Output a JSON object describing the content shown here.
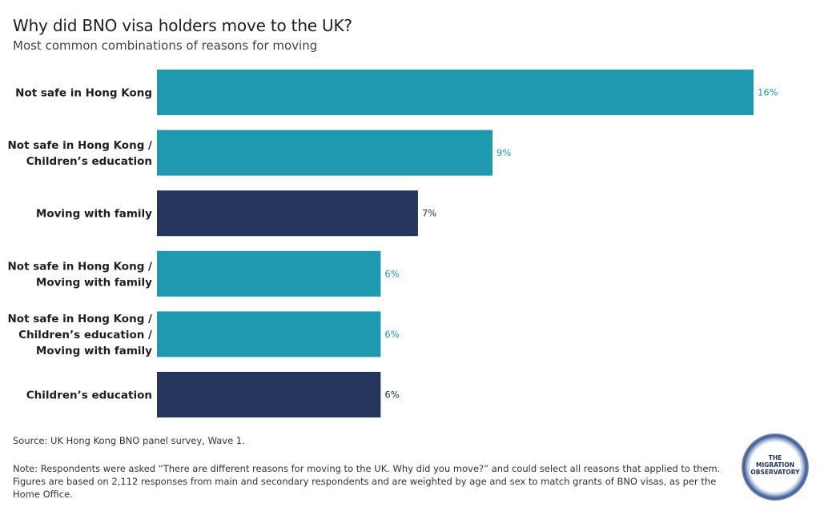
{
  "chart_data": {
    "type": "bar",
    "orientation": "horizontal",
    "title": "Why did BNO visa holders move to the UK?",
    "subtitle": "Most common combinations of reasons for moving",
    "categories": [
      [
        "Not safe in Hong Kong"
      ],
      [
        "Not safe in Hong Kong /",
        "Children’s education"
      ],
      [
        "Moving with family"
      ],
      [
        "Not safe in Hong Kong /",
        "Moving with family"
      ],
      [
        "Not safe in Hong Kong /",
        "Children’s education /",
        "Moving with family"
      ],
      [
        "Children’s education"
      ]
    ],
    "values": [
      16,
      9,
      7,
      6,
      6,
      6
    ],
    "value_labels": [
      "16%",
      "9%",
      "7%",
      "6%",
      "6%",
      "6%"
    ],
    "bar_colors": [
      "#1f99b0",
      "#1f99b0",
      "#25355e",
      "#1f99b0",
      "#1f99b0",
      "#25355e"
    ],
    "label_colors": [
      "#1f99b0",
      "#1f99b0",
      "#25355e",
      "#1f99b0",
      "#1f99b0",
      "#25355e"
    ],
    "xlim": [
      0,
      16
    ],
    "grid": false,
    "legend": "none"
  },
  "source": "Source: UK Hong Kong BNO panel survey, Wave 1.",
  "note": "Note: Respondents were asked “There are different reasons for moving to the UK. Why did you move?” and could select all reasons that applied to them. Figures are based on 2,112 responses from main and secondary respondents and are weighted by age and sex to match grants of BNO visas, as per the Home Office.",
  "logo": {
    "icon": "migration-observatory-logo",
    "line1": "THE",
    "line2": "MIGRATION",
    "line3": "OBSERVATORY"
  }
}
